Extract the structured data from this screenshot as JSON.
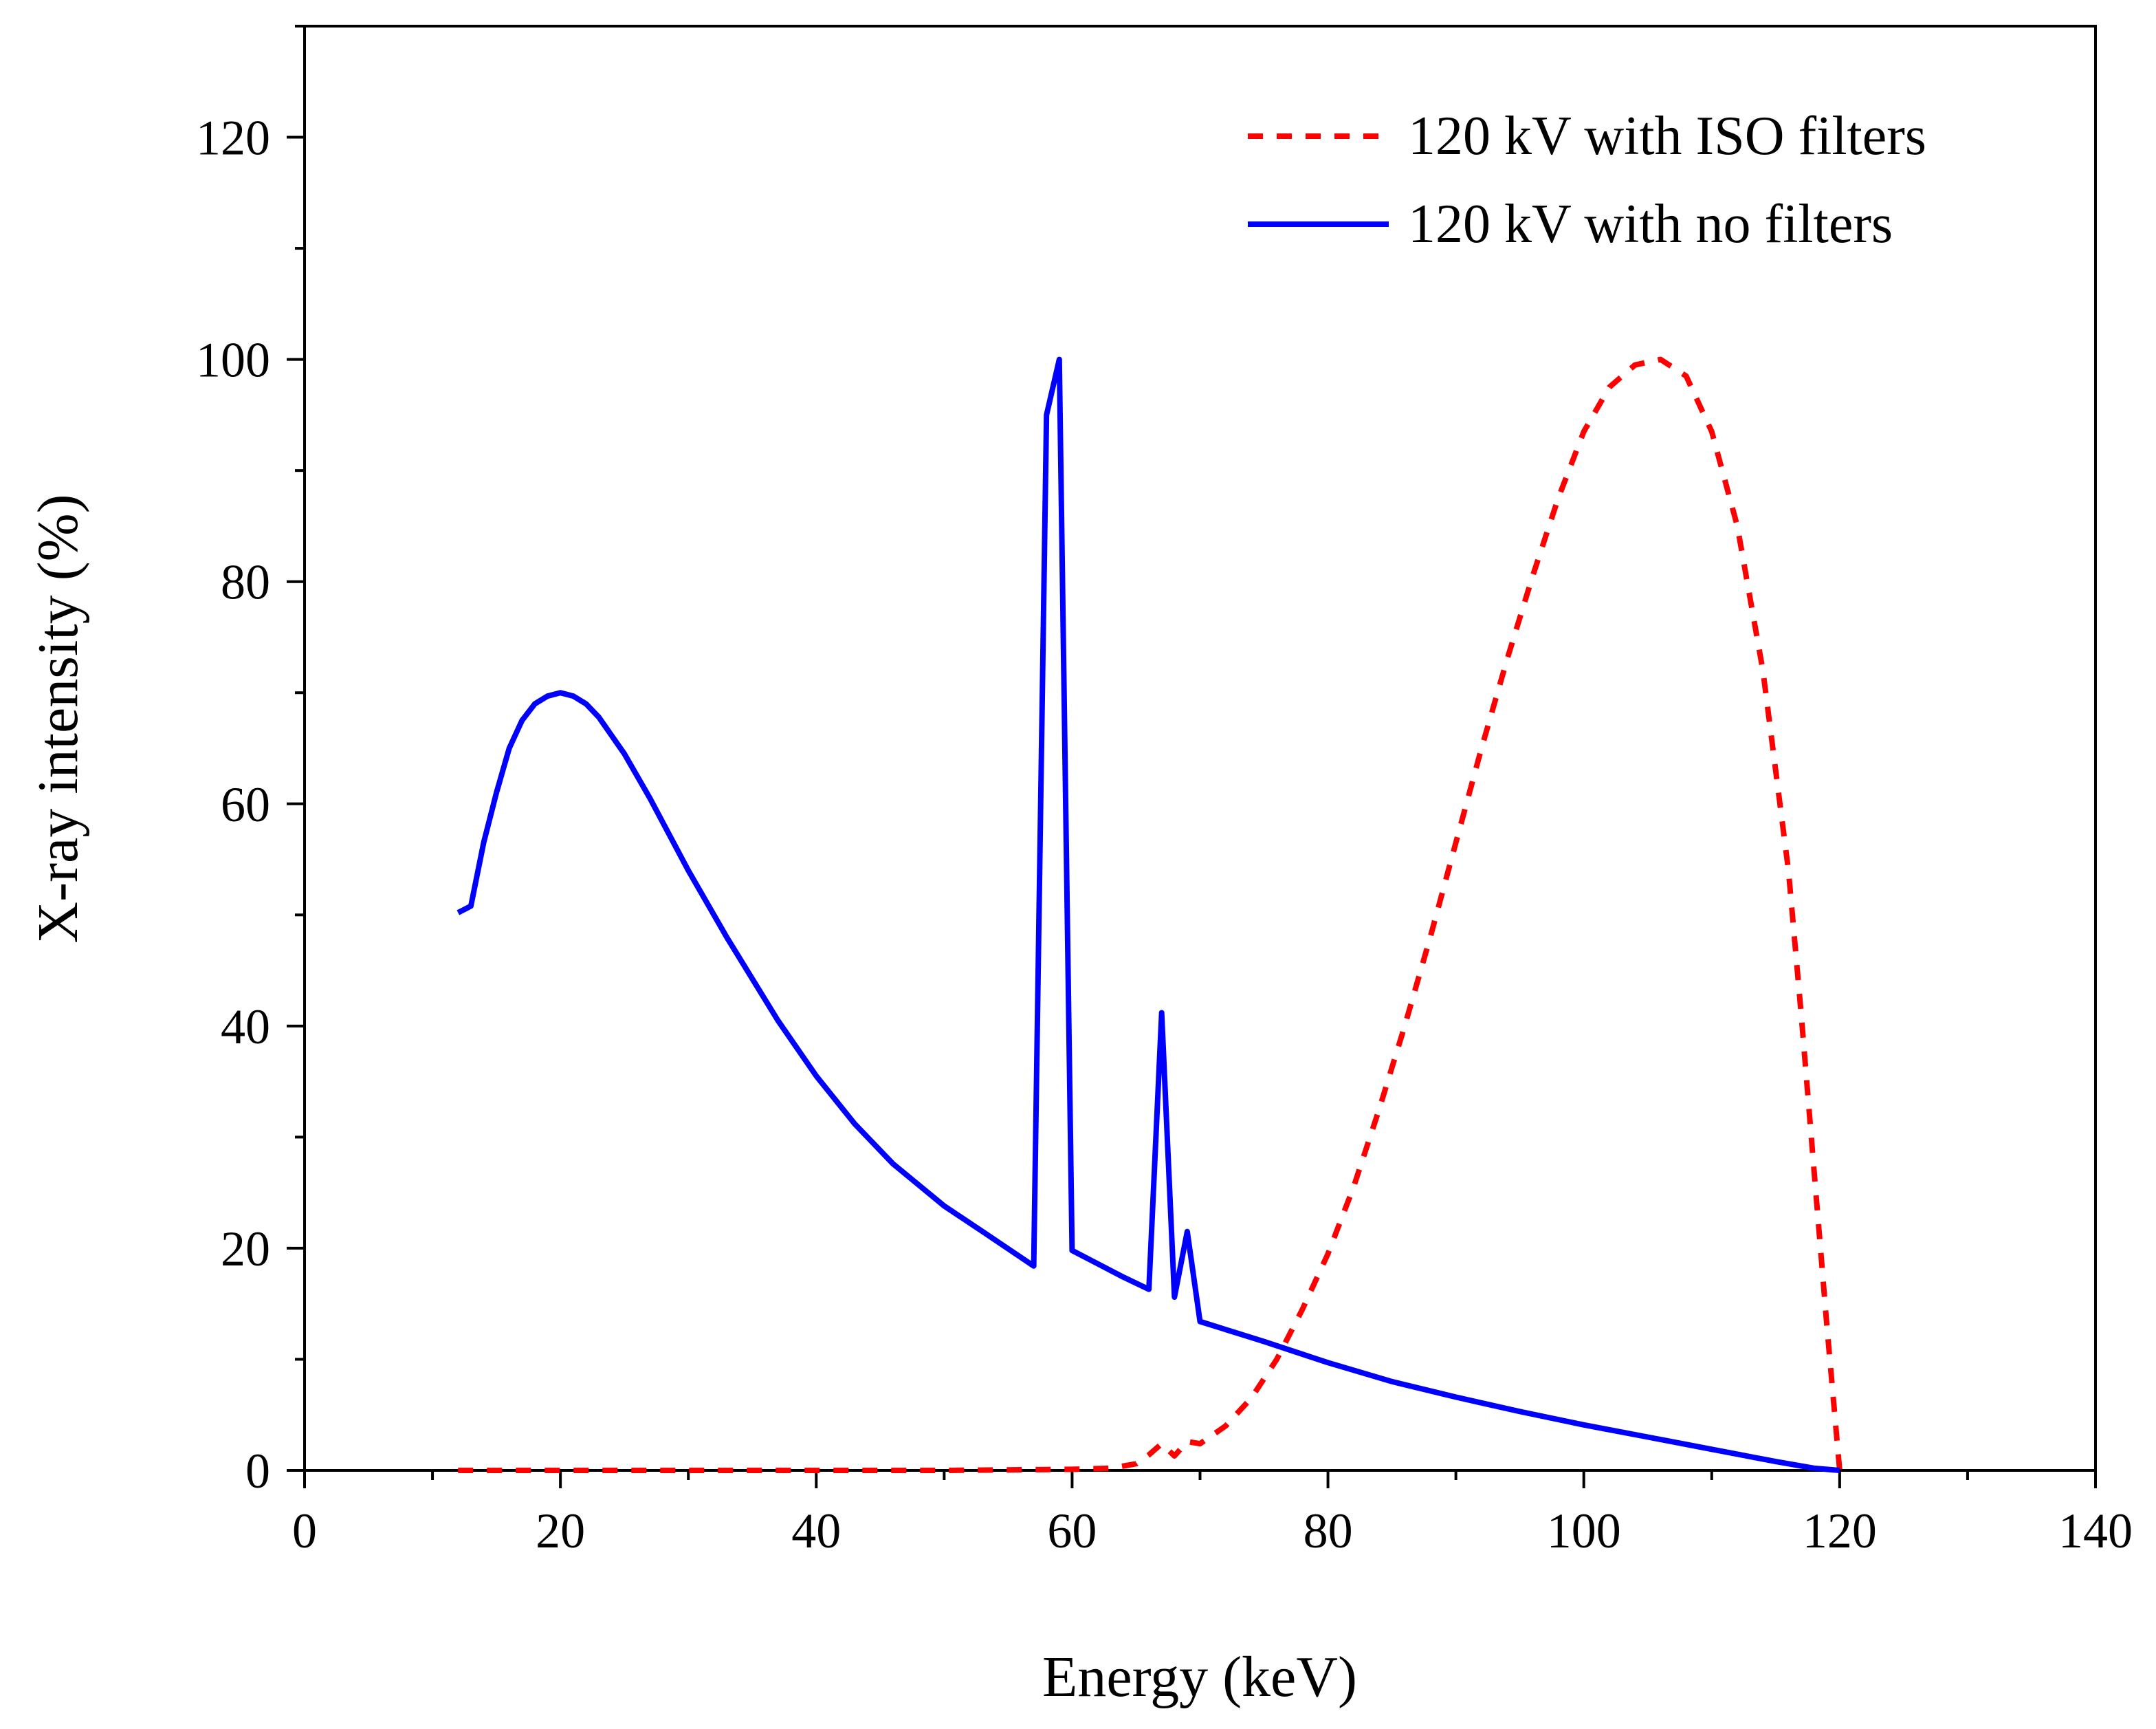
{
  "chart_data": {
    "type": "line",
    "title": "",
    "xlabel": "Energy (keV)",
    "ylabel": "X-ray intensity (%)",
    "xlim": [
      0,
      140
    ],
    "ylim": [
      0,
      130
    ],
    "xticks": [
      0,
      20,
      40,
      60,
      80,
      100,
      120,
      140
    ],
    "yticks": [
      0,
      20,
      40,
      60,
      80,
      100,
      120
    ],
    "x_minor_step": 10,
    "y_minor_step": 10,
    "grid": false,
    "legend_position": "top-right",
    "series": [
      {
        "name": "120 kV with ISO filters",
        "color": "#ff0000",
        "style": "dashed",
        "x": [
          12,
          20,
          30,
          40,
          50,
          60,
          63,
          65,
          66,
          67,
          68,
          69,
          70,
          72,
          74,
          76,
          78,
          80,
          82,
          84,
          86,
          88,
          90,
          92,
          94,
          96,
          98,
          100,
          102,
          104,
          106,
          108,
          110,
          112,
          114,
          116,
          117,
          118,
          119,
          120
        ],
        "y": [
          0,
          0,
          0,
          0,
          0,
          0.1,
          0.2,
          0.6,
          1.4,
          2.4,
          1.3,
          2.6,
          2.4,
          4.0,
          6.5,
          10.0,
          14.5,
          19.5,
          25.5,
          32.5,
          40.0,
          48.0,
          56.5,
          65.0,
          73.0,
          80.5,
          87.5,
          93.5,
          97.5,
          99.5,
          100,
          98.5,
          93.5,
          85.0,
          72.0,
          54.0,
          41.0,
          27.0,
          13.0,
          0
        ]
      },
      {
        "name": "120 kV with no filters",
        "color": "#0000ff",
        "style": "solid",
        "x": [
          12,
          13,
          14,
          15,
          16,
          17,
          18,
          19,
          20,
          21,
          22,
          23,
          25,
          27,
          30,
          33,
          37,
          40,
          43,
          46,
          50,
          53,
          57,
          58,
          59,
          60,
          62,
          64,
          66,
          67,
          68,
          69,
          70,
          75,
          80,
          85,
          90,
          95,
          100,
          105,
          110,
          115,
          118,
          120
        ],
        "y": [
          50.2,
          50.8,
          56.5,
          61.0,
          65.0,
          67.5,
          69.0,
          69.7,
          70.0,
          69.7,
          69.0,
          67.8,
          64.5,
          60.5,
          54.0,
          48.0,
          40.5,
          35.5,
          31.2,
          27.6,
          23.8,
          21.5,
          18.4,
          95.0,
          100,
          19.8,
          18.6,
          17.4,
          16.3,
          41.2,
          15.6,
          21.5,
          13.4,
          11.6,
          9.7,
          8.0,
          6.6,
          5.3,
          4.1,
          3.0,
          1.9,
          0.8,
          0.2,
          0
        ]
      }
    ]
  }
}
